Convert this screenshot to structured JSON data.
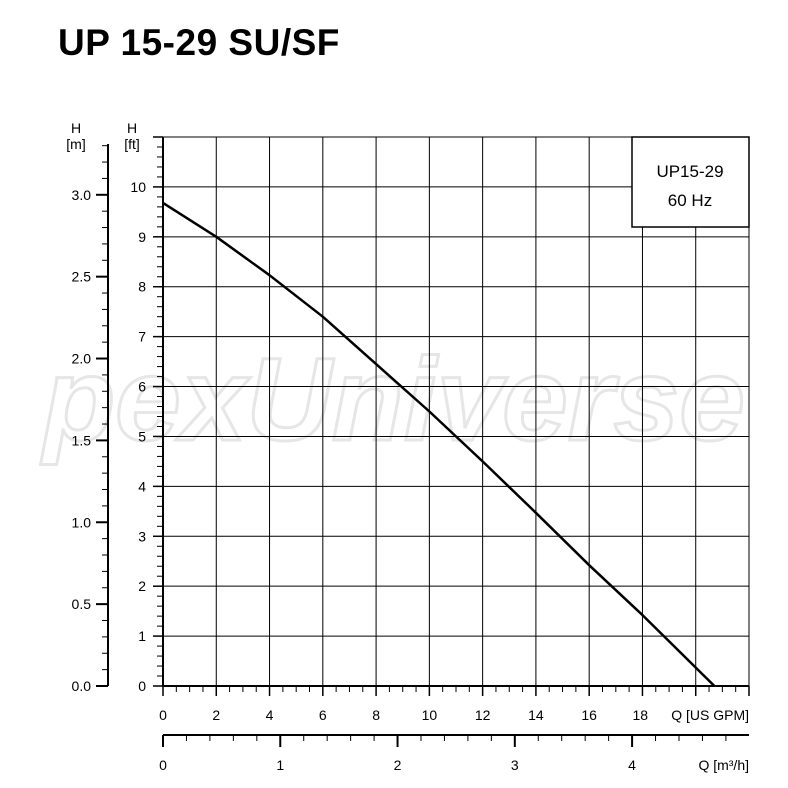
{
  "title": "UP 15-29 SU/SF",
  "watermark": "pexUniverse",
  "chart_data": {
    "type": "line",
    "legend_box": [
      "UP15-29",
      "60 Hz"
    ],
    "legend_placement": "top-right",
    "grid": true,
    "x_axis": {
      "label": "Q [US GPM]",
      "range": [
        0,
        22
      ],
      "ticks": [
        0,
        2,
        4,
        6,
        8,
        10,
        12,
        14,
        16,
        18
      ],
      "minor_step": 0.5
    },
    "x2_axis": {
      "label": "Q [m³/h]",
      "range": [
        0,
        4.997
      ],
      "ticks": [
        0,
        1,
        2,
        3,
        4
      ],
      "minor_step": 0.2
    },
    "y_axis": {
      "label_top": "H",
      "label_unit": "[ft]",
      "range": [
        0,
        11
      ],
      "ticks": [
        0,
        1,
        2,
        3,
        4,
        5,
        6,
        7,
        8,
        9,
        10
      ],
      "minor_step": 0.2
    },
    "y2_axis": {
      "label_top": "H",
      "label_unit": "[m]",
      "range": [
        0,
        3.353
      ],
      "ticks": [
        "0.0",
        "0.5",
        "1.0",
        "1.5",
        "2.0",
        "2.5",
        "3.0"
      ],
      "minor_step": 0.1
    },
    "series": [
      {
        "x": [
          0,
          2,
          4,
          6,
          8,
          10,
          12,
          14,
          16,
          18,
          20.7
        ],
        "y": [
          9.68,
          9.0,
          8.23,
          7.4,
          6.45,
          5.5,
          4.5,
          3.47,
          2.42,
          1.42,
          0
        ]
      }
    ]
  }
}
